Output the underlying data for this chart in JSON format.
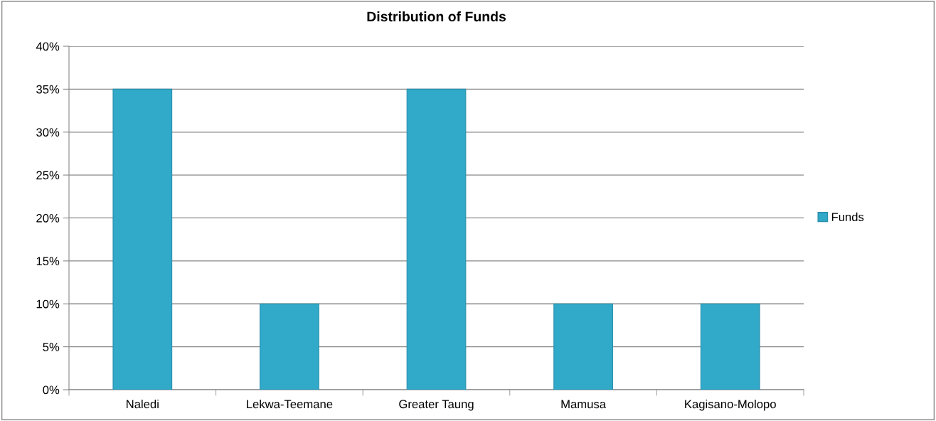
{
  "chart_data": {
    "type": "bar",
    "title": "Distribution of Funds",
    "categories": [
      "Naledi",
      "Lekwa-Teemane",
      "Greater Taung",
      "Mamusa",
      "Kagisano-Molopo"
    ],
    "series": [
      {
        "name": "Funds",
        "color": "#31a9c9",
        "values": [
          35,
          10,
          35,
          10,
          10
        ]
      }
    ],
    "ylim": [
      0,
      40
    ],
    "yticks": [
      {
        "value": 0,
        "label": "0%"
      },
      {
        "value": 5,
        "label": "5%"
      },
      {
        "value": 10,
        "label": "10%"
      },
      {
        "value": 15,
        "label": "15%"
      },
      {
        "value": 20,
        "label": "20%"
      },
      {
        "value": 25,
        "label": "25%"
      },
      {
        "value": 30,
        "label": "30%"
      },
      {
        "value": 35,
        "label": "35%"
      },
      {
        "value": 40,
        "label": "40%"
      }
    ],
    "grid": "y",
    "legend": "right"
  }
}
